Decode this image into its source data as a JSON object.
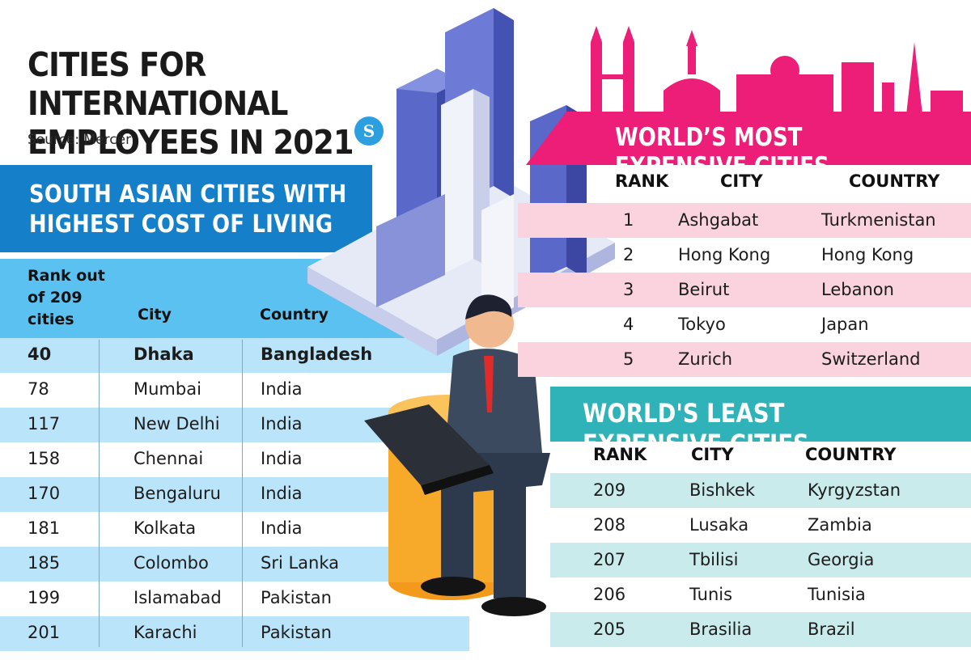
{
  "header": {
    "title_line1": "CITIES FOR INTERNATIONAL",
    "title_line2": "EMPLOYEES IN 2021",
    "source": "Source: Mercer",
    "logo_text": "S"
  },
  "south_asia": {
    "title_line1": "SOUTH ASIAN CITIES WITH",
    "title_line2": "HIGHEST COST OF LIVING",
    "rank_header_line1": "Rank out",
    "rank_header_line2": "of 209",
    "rank_header_line3": "cities",
    "city_header": "City",
    "country_header": "Country",
    "rows": [
      {
        "rank": "40",
        "city": "Dhaka",
        "country": "Bangladesh"
      },
      {
        "rank": "78",
        "city": "Mumbai",
        "country": "India"
      },
      {
        "rank": "117",
        "city": "New Delhi",
        "country": "India"
      },
      {
        "rank": "158",
        "city": "Chennai",
        "country": "India"
      },
      {
        "rank": "170",
        "city": "Bengaluru",
        "country": "India"
      },
      {
        "rank": "181",
        "city": "Kolkata",
        "country": "India"
      },
      {
        "rank": "185",
        "city": "Colombo",
        "country": "Sri Lanka"
      },
      {
        "rank": "199",
        "city": "Islamabad",
        "country": "Pakistan"
      },
      {
        "rank": "201",
        "city": "Karachi",
        "country": "Pakistan"
      }
    ]
  },
  "most_expensive": {
    "title": "WORLD’S MOST EXPENSIVE CITIES",
    "rank_header": "RANK",
    "city_header": "CITY",
    "country_header": "COUNTRY",
    "rows": [
      {
        "rank": "1",
        "city": "Ashgabat",
        "country": "Turkmenistan"
      },
      {
        "rank": "2",
        "city": "Hong Kong",
        "country": "Hong Kong"
      },
      {
        "rank": "3",
        "city": "Beirut",
        "country": "Lebanon"
      },
      {
        "rank": "4",
        "city": "Tokyo",
        "country": "Japan"
      },
      {
        "rank": "5",
        "city": "Zurich",
        "country": "Switzerland"
      }
    ]
  },
  "least_expensive": {
    "title": "WORLD'S LEAST EXPENSIVE CITIES",
    "rank_header": "RANK",
    "city_header": "CITY",
    "country_header": "COUNTRY",
    "rows": [
      {
        "rank": "209",
        "city": "Bishkek",
        "country": "Kyrgyzstan"
      },
      {
        "rank": "208",
        "city": "Lusaka",
        "country": "Zambia"
      },
      {
        "rank": "207",
        "city": "Tbilisi",
        "country": "Georgia"
      },
      {
        "rank": "206",
        "city": "Tunis",
        "country": "Tunisia"
      },
      {
        "rank": "205",
        "city": "Brasilia",
        "country": "Brazil"
      }
    ]
  },
  "colors": {
    "south_asia_banner": "#1580c9",
    "south_asia_header": "#5bc1f0",
    "south_asia_shade": "#b9e4fa",
    "most_expensive_banner": "#ec1e78",
    "most_expensive_shade": "#fbd3de",
    "least_expensive_banner": "#2fb3b8",
    "least_expensive_shade": "#c9ebec"
  }
}
